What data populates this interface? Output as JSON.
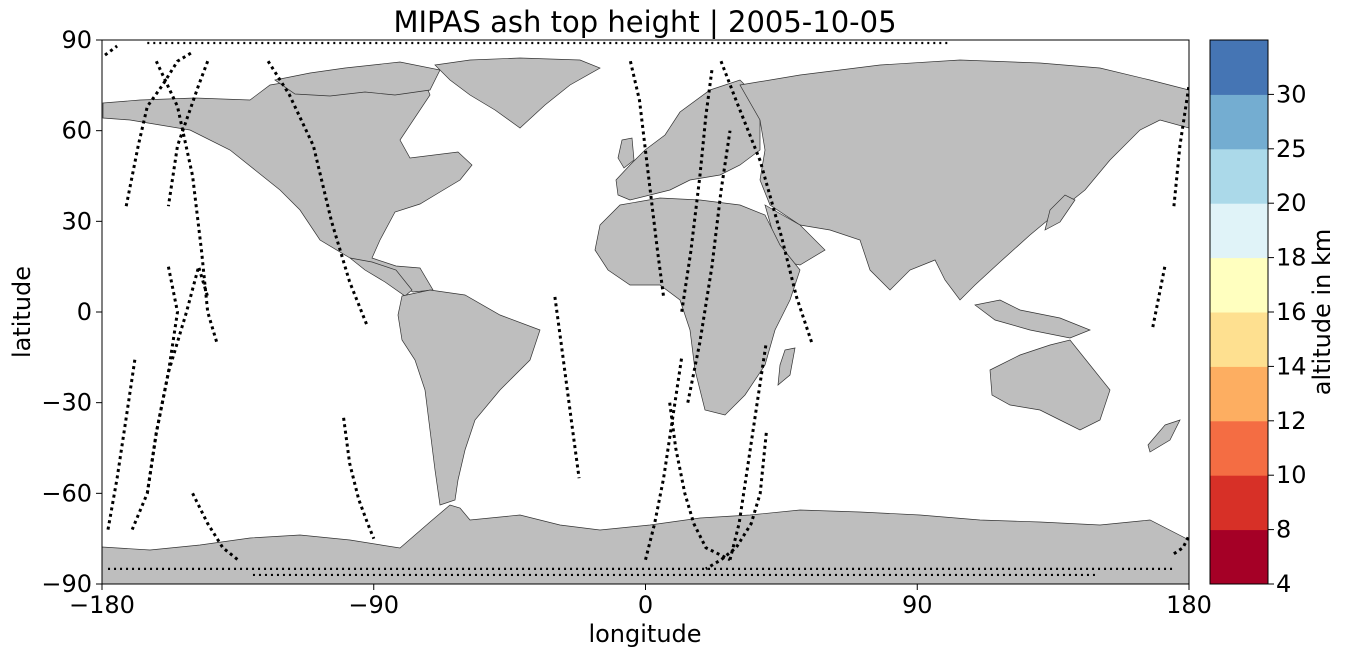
{
  "chart_data": {
    "type": "scatter",
    "title": "MIPAS ash top height | 2005-10-05",
    "xlabel": "longitude",
    "ylabel": "latitude",
    "xlim": [
      -180,
      180
    ],
    "ylim": [
      -90,
      90
    ],
    "xticks": [
      {
        "value": -180,
        "label": "−180"
      },
      {
        "value": -90,
        "label": "−90"
      },
      {
        "value": 0,
        "label": "0"
      },
      {
        "value": 90,
        "label": "90"
      },
      {
        "value": 180,
        "label": "180"
      }
    ],
    "yticks": [
      {
        "value": 90,
        "label": "90"
      },
      {
        "value": 60,
        "label": "60"
      },
      {
        "value": 30,
        "label": "30"
      },
      {
        "value": 0,
        "label": "0"
      },
      {
        "value": -30,
        "label": "−30"
      },
      {
        "value": -60,
        "label": "−60"
      },
      {
        "value": -90,
        "label": "−90"
      }
    ],
    "colors": {
      "land": "#bebebe",
      "coast": "#333333",
      "ocean": "#ffffff",
      "track": "#000000"
    },
    "orbit_tracks": [
      {
        "lon": [
          -179,
          -175
        ],
        "lat": [
          85,
          88
        ]
      },
      {
        "lon": [
          -162,
          -155,
          -150,
          -147,
          -145,
          -142
        ],
        "lat": [
          83,
          68,
          45,
          20,
          0,
          -10
        ]
      },
      {
        "lon": [
          -145,
          -148,
          -155,
          -158
        ],
        "lat": [
          83,
          75,
          55,
          35
        ]
      },
      {
        "lon": [
          -158,
          -155,
          -158,
          -162,
          -165,
          -170
        ],
        "lat": [
          15,
          0,
          -20,
          -40,
          -60,
          -72
        ]
      },
      {
        "lon": [
          -165,
          -162,
          -158,
          -152,
          -148,
          -145
        ],
        "lat": [
          -60,
          -40,
          -20,
          0,
          15,
          5
        ]
      },
      {
        "lon": [
          -172,
          -168,
          -165,
          -160,
          -155,
          -150
        ],
        "lat": [
          35,
          55,
          68,
          75,
          83,
          86
        ]
      },
      {
        "lon": [
          -178,
          -175,
          -172,
          -169
        ],
        "lat": [
          -72,
          -55,
          -35,
          -15
        ]
      },
      {
        "lon": [
          -150,
          -145,
          -140,
          -135
        ],
        "lat": [
          -60,
          -70,
          -78,
          -82
        ]
      },
      {
        "lon": [
          -125,
          -118,
          -110,
          -104,
          -98,
          -92
        ],
        "lat": [
          83,
          72,
          55,
          30,
          10,
          -5
        ]
      },
      {
        "lon": [
          -100,
          -98,
          -95,
          -92,
          -90
        ],
        "lat": [
          -35,
          -50,
          -62,
          -70,
          -75
        ]
      },
      {
        "lon": [
          -30,
          -28,
          -26,
          -24,
          -22
        ],
        "lat": [
          5,
          -10,
          -25,
          -40,
          -55
        ]
      },
      {
        "lon": [
          -5,
          -2,
          1,
          4,
          6
        ],
        "lat": [
          83,
          70,
          45,
          20,
          5
        ]
      },
      {
        "lon": [
          8,
          10,
          13,
          16,
          20,
          28
        ],
        "lat": [
          -30,
          -45,
          -60,
          -70,
          -78,
          -82
        ]
      },
      {
        "lon": [
          0,
          3,
          6,
          9,
          12
        ],
        "lat": [
          -82,
          -70,
          -55,
          -35,
          -15
        ]
      },
      {
        "lon": [
          14,
          18,
          22,
          25,
          28
        ],
        "lat": [
          -30,
          -10,
          15,
          40,
          60
        ]
      },
      {
        "lon": [
          25,
          30,
          38,
          45,
          50,
          55
        ],
        "lat": [
          83,
          70,
          50,
          25,
          5,
          -10
        ]
      },
      {
        "lon": [
          22,
          20,
          18,
          15,
          12
        ],
        "lat": [
          80,
          65,
          45,
          20,
          0
        ]
      },
      {
        "lon": [
          40,
          38,
          35,
          30,
          25,
          20
        ],
        "lat": [
          -40,
          -60,
          -70,
          -78,
          -82,
          -85
        ]
      },
      {
        "lon": [
          28,
          31,
          34,
          37,
          40
        ],
        "lat": [
          -82,
          -70,
          -50,
          -30,
          -10
        ]
      },
      {
        "lon": [
          175,
          177,
          180
        ],
        "lat": [
          35,
          55,
          75
        ]
      },
      {
        "lon": [
          168,
          170,
          172
        ],
        "lat": [
          -5,
          5,
          15
        ]
      },
      {
        "lon": [
          175,
          178,
          180
        ],
        "lat": [
          -80,
          -78,
          -74
        ]
      }
    ],
    "polar_dot_rows": [
      {
        "lat": 89,
        "lon_from": -165,
        "lon_to": 100
      },
      {
        "lat": -87,
        "lon_from": -130,
        "lon_to": 150
      },
      {
        "lat": -85,
        "lon_from": -178,
        "lon_to": 175
      }
    ],
    "colorbar": {
      "label": "altitude in km",
      "boundaries": [
        4,
        8,
        10,
        12,
        14,
        16,
        18,
        20,
        25,
        30
      ],
      "tick_labels": [
        "4",
        "8",
        "10",
        "12",
        "14",
        "16",
        "18",
        "20",
        "25",
        "30"
      ],
      "colors": [
        "#a50026",
        "#d73027",
        "#f46d43",
        "#fdae61",
        "#fee090",
        "#ffffbf",
        "#e0f3f8",
        "#abd9e9",
        "#74add1",
        "#4575b4"
      ]
    }
  }
}
